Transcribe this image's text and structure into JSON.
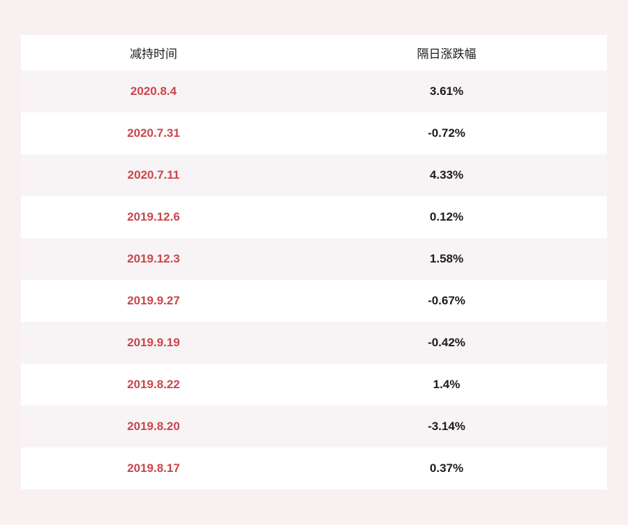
{
  "chart_data": {
    "type": "table",
    "title": "",
    "columns": [
      "减持时间",
      "隔日涨跌幅"
    ],
    "rows": [
      {
        "date": "2020.8.4",
        "change": "3.61%"
      },
      {
        "date": "2020.7.31",
        "change": "-0.72%"
      },
      {
        "date": "2020.7.11",
        "change": "4.33%"
      },
      {
        "date": "2019.12.6",
        "change": "0.12%"
      },
      {
        "date": "2019.12.3",
        "change": "1.58%"
      },
      {
        "date": "2019.9.27",
        "change": "-0.67%"
      },
      {
        "date": "2019.9.19",
        "change": "-0.42%"
      },
      {
        "date": "2019.8.22",
        "change": "1.4%"
      },
      {
        "date": "2019.8.20",
        "change": "-3.14%"
      },
      {
        "date": "2019.8.17",
        "change": "0.37%"
      }
    ],
    "layout": {
      "grid": false,
      "alternating_rows": true
    }
  },
  "colors": {
    "page_background": "#f9f0f1",
    "row_alt_background": "#f8f4f5",
    "row_background": "#ffffff",
    "date_text": "#c9464b",
    "value_text": "#1c1c1c"
  }
}
